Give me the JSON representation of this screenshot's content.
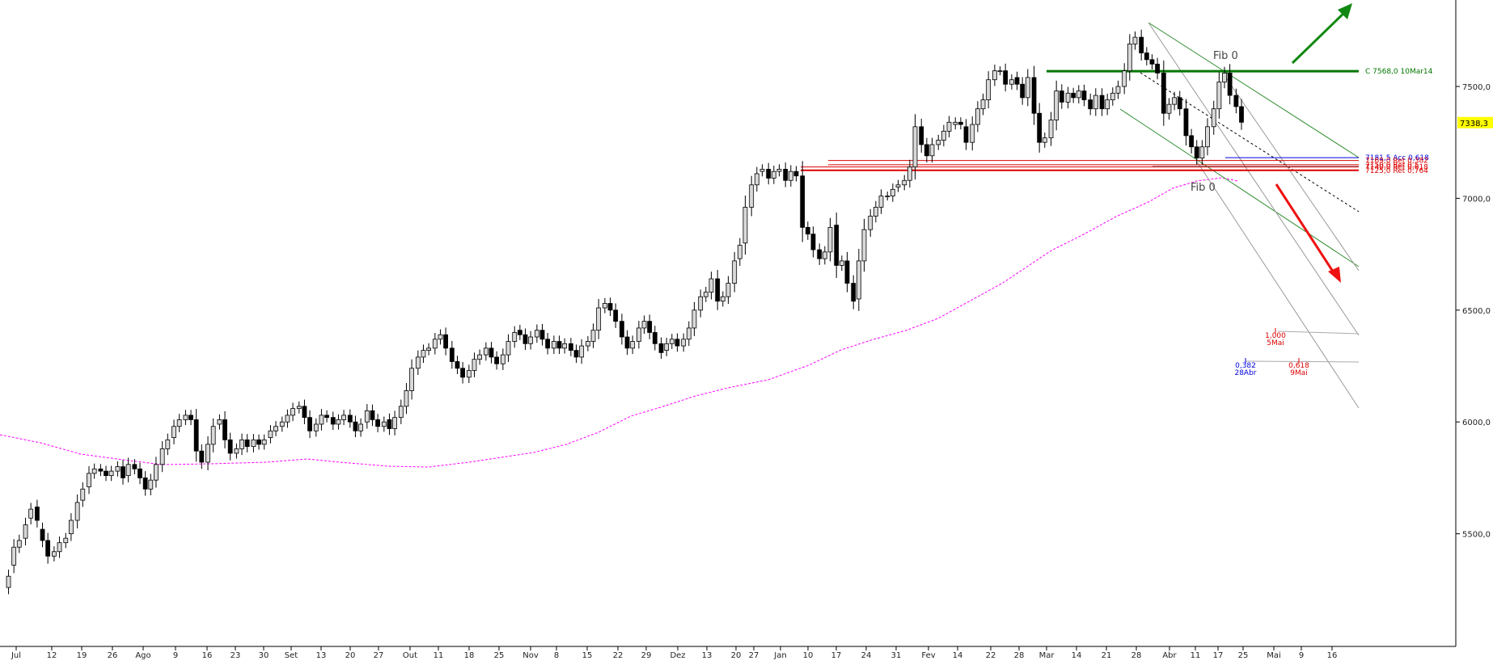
{
  "chart_data": {
    "type": "candlestick",
    "title": "",
    "x_tick_labels": [
      "Jul",
      "12",
      "19",
      "26",
      "Ago",
      "9",
      "16",
      "23",
      "30",
      "Set",
      "13",
      "20",
      "27",
      "Out",
      "11",
      "18",
      "25",
      "Nov",
      "8",
      "15",
      "22",
      "29",
      "Dez",
      "13",
      "20",
      "27",
      "Jan",
      "10",
      "17",
      "24",
      "31",
      "Fev",
      "14",
      "22",
      "28",
      "Mar",
      "14",
      "21",
      "28",
      "Abr",
      "11",
      "17",
      "25",
      "Mai",
      "9",
      "16"
    ],
    "y_tick_labels": [
      "7500,0",
      "7000,0",
      "6500,0",
      "6000,0",
      "5500,0"
    ],
    "y_ticks": [
      7500,
      7000,
      6500,
      6000,
      5500
    ],
    "ylim": [
      5050,
      7880
    ],
    "last_price_label": "7338,3",
    "last_price": 7338.3,
    "moving_average_color": "#ff00ff",
    "candle_up_color": "#d9d9d9",
    "candle_down_color": "#000000",
    "levels": [
      {
        "label": "C 7568,0 10Mar14",
        "value": 7568.0,
        "color": "#007700"
      },
      {
        "label": "7181,5 Acc 0,618",
        "value": 7181.5,
        "color": "#0000dd"
      },
      {
        "label": "7169,0 Ret 0,382",
        "value": 7169.0,
        "color": "#dd0000"
      },
      {
        "label": "7150,0 Ret 0,5",
        "value": 7150.0,
        "color": "#dd0000"
      },
      {
        "label": "7140,0 Ret 0,618",
        "value": 7140.0,
        "color": "#dd0000"
      },
      {
        "label": "7125,0 Ret 0,764",
        "value": 7125.0,
        "color": "#dd0000"
      }
    ],
    "annotations": {
      "fib_top": "Fib 0",
      "fib_bottom": "Fib 0",
      "time_fib": [
        {
          "ratio": "1,000",
          "date": "5Mai",
          "color": "#dd0000"
        },
        {
          "ratio": "0,382",
          "date": "28Abr",
          "color": "#0000dd"
        },
        {
          "ratio": "0,618",
          "date": "9Mai",
          "color": "#dd0000"
        }
      ]
    }
  }
}
